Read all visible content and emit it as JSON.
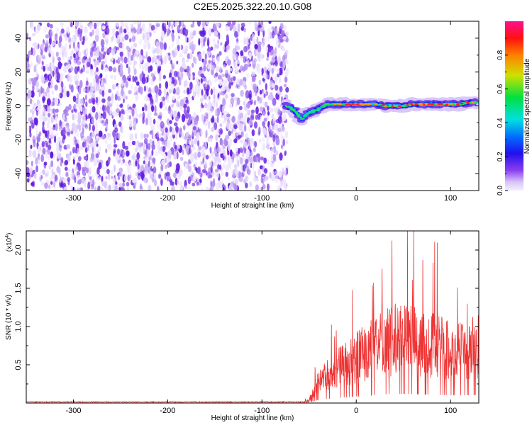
{
  "title": "C2E5.2025.322.20.10.G08",
  "chart_data": [
    {
      "type": "heatmap",
      "name": "spectrogram",
      "xlabel": "Height of straight line (km)",
      "ylabel": "Frequency (Hz)",
      "xlim": [
        -350,
        130
      ],
      "ylim": [
        -50,
        50
      ],
      "xticks": [
        -300,
        -200,
        -100,
        0,
        100
      ],
      "yticks": [
        -40,
        -20,
        0,
        20,
        40
      ],
      "noise_region_x": [
        -350,
        -73
      ],
      "signal_track": {
        "x": [
          -75,
          -70,
          -65,
          -62,
          -58,
          -55,
          -50,
          -45,
          -40,
          -35,
          -30,
          -25,
          -20,
          -15,
          -10,
          -5,
          0,
          10,
          20,
          30,
          40,
          50,
          60,
          70,
          80,
          90,
          100,
          110,
          120,
          128
        ],
        "y": [
          0,
          -1,
          -3,
          -5,
          -8,
          -6,
          -4,
          -3,
          -2,
          0,
          1,
          1,
          1,
          1,
          1,
          1,
          1,
          1,
          1,
          0,
          0,
          0,
          1,
          1,
          1,
          1,
          1,
          1,
          2,
          2
        ]
      },
      "colorbar": {
        "label": "Normalized spectral amplitude",
        "range": [
          0,
          1
        ],
        "ticks": [
          0.0,
          0.2,
          0.4,
          0.6,
          0.8
        ]
      }
    },
    {
      "type": "line",
      "name": "snr",
      "xlabel": "Height of straight line (km)",
      "ylabel": "SNR (10 * v/v)",
      "multiplier_label": "(x10",
      "multiplier_exp": "4",
      "xlim": [
        -350,
        130
      ],
      "ylim": [
        0,
        2.25
      ],
      "xticks": [
        -300,
        -200,
        -100,
        0,
        100
      ],
      "yticks": [
        0.5,
        1.0,
        1.5,
        2.0
      ],
      "color": "#ee3333",
      "envelope": {
        "x": [
          -350,
          -60,
          -50,
          -45,
          -40,
          -30,
          -20,
          -10,
          0,
          10,
          20,
          30,
          40,
          50,
          60,
          70,
          80,
          90,
          100,
          110,
          120,
          128
        ],
        "y": [
          0.01,
          0.01,
          0.04,
          0.2,
          0.35,
          0.45,
          0.55,
          0.62,
          0.72,
          0.8,
          0.88,
          0.95,
          1.0,
          1.0,
          0.98,
          0.95,
          0.92,
          0.88,
          0.85,
          0.82,
          0.85,
          0.9
        ]
      }
    }
  ]
}
